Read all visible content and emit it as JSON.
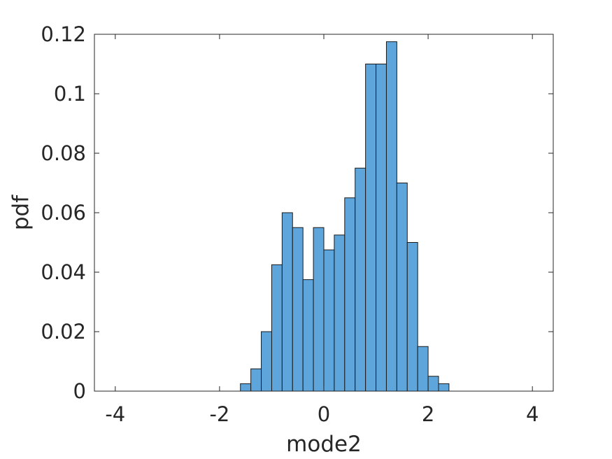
{
  "chart_data": {
    "type": "bar",
    "title": "",
    "xlabel": "mode2",
    "ylabel": "pdf",
    "xlim": [
      -4.4,
      4.4
    ],
    "ylim": [
      0,
      0.12
    ],
    "xticks": [
      -4,
      -2,
      0,
      2,
      4
    ],
    "xtick_labels": [
      "-4",
      "-2",
      "0",
      "2",
      "4"
    ],
    "yticks": [
      0,
      0.02,
      0.04,
      0.06,
      0.08,
      0.1,
      0.12
    ],
    "ytick_labels": [
      "0",
      "0.02",
      "0.04",
      "0.06",
      "0.08",
      "0.1",
      "0.12"
    ],
    "grid": false,
    "bin_width": 0.2,
    "bin_edges_start": -4.0,
    "bin_edges_end": 4.0,
    "values": [
      0,
      0,
      0,
      0,
      0,
      0,
      0,
      0,
      0,
      0,
      0,
      0,
      0.0025,
      0.0075,
      0.02,
      0.0425,
      0.06,
      0.055,
      0.0375,
      0.055,
      0.0475,
      0.0525,
      0.065,
      0.075,
      0.11,
      0.11,
      0.1175,
      0.07,
      0.05,
      0.015,
      0.005,
      0.0025,
      0,
      0,
      0,
      0,
      0,
      0,
      0,
      0
    ],
    "colors": {
      "bar_fill": "#5DA5DA",
      "bar_edge": "#1a1a1a",
      "axis": "#262626"
    }
  }
}
